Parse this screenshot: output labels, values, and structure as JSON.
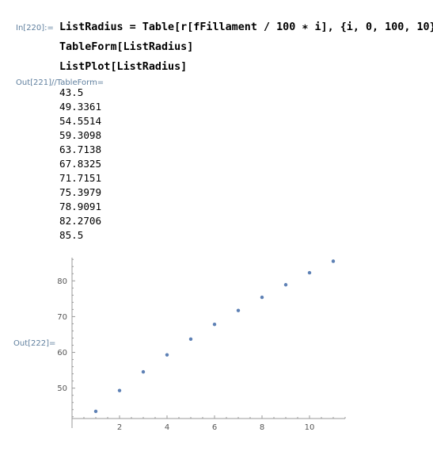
{
  "input": {
    "label": "In[220]:=",
    "lines": [
      "ListRadius = Table[r[fFillament / 100 ∗ i], {i, 0, 100, 10}];",
      "TableForm[ListRadius]",
      "ListPlot[ListRadius]"
    ]
  },
  "output_table": {
    "label": "Out[221]//TableForm=",
    "values": [
      "43.5",
      "49.3361",
      "54.5514",
      "59.3098",
      "63.7138",
      "67.8325",
      "71.7151",
      "75.3979",
      "78.9091",
      "82.2706",
      "85.5"
    ]
  },
  "output_plot": {
    "label": "Out[222]="
  },
  "chart_data": {
    "type": "scatter",
    "title": "",
    "xlabel": "",
    "ylabel": "",
    "x": [
      1,
      2,
      3,
      4,
      5,
      6,
      7,
      8,
      9,
      10,
      11
    ],
    "y": [
      43.5,
      49.3361,
      54.5514,
      59.3098,
      63.7138,
      67.8325,
      71.7151,
      75.3979,
      78.9091,
      82.2706,
      85.5
    ],
    "xlim": [
      0,
      11.5
    ],
    "ylim": [
      41.5,
      86.5
    ],
    "x_ticks": [
      2,
      4,
      6,
      8,
      10
    ],
    "y_ticks": [
      50,
      60,
      70,
      80
    ],
    "x_tick_labels": [
      "2",
      "4",
      "6",
      "8",
      "10"
    ],
    "y_tick_labels": [
      "50",
      "60",
      "70",
      "80"
    ],
    "grid": false,
    "point_color": "#5e81b5",
    "axis_color": "#999999"
  }
}
